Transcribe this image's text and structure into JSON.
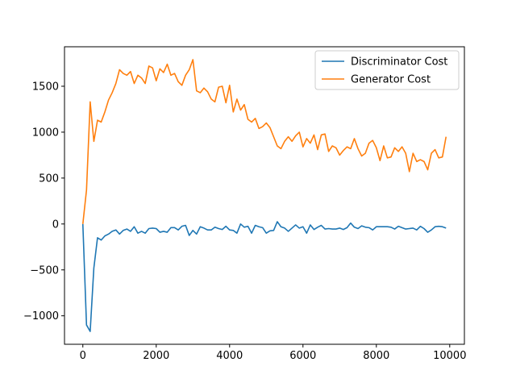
{
  "chart_data": {
    "type": "line",
    "title": "",
    "xlabel": "",
    "ylabel": "",
    "xlim": [
      -500,
      10400
    ],
    "ylim": [
      -1310,
      1930
    ],
    "xticks": [
      0,
      2000,
      4000,
      6000,
      8000,
      10000
    ],
    "xtick_labels": [
      "0",
      "2000",
      "4000",
      "6000",
      "8000",
      "10000"
    ],
    "yticks": [
      -1000,
      -500,
      0,
      500,
      1000,
      1500
    ],
    "ytick_labels": [
      "−1000",
      "−500",
      "0",
      "500",
      "1000",
      "1500"
    ],
    "grid": false,
    "legend": {
      "placement": "top-right"
    },
    "x": [
      0,
      100,
      200,
      300,
      400,
      500,
      600,
      700,
      800,
      900,
      1000,
      1100,
      1200,
      1300,
      1400,
      1500,
      1600,
      1700,
      1800,
      1900,
      2000,
      2100,
      2200,
      2300,
      2400,
      2500,
      2600,
      2700,
      2800,
      2900,
      3000,
      3100,
      3200,
      3300,
      3400,
      3500,
      3600,
      3700,
      3800,
      3900,
      4000,
      4100,
      4200,
      4300,
      4400,
      4500,
      4600,
      4700,
      4800,
      4900,
      5000,
      5100,
      5200,
      5300,
      5400,
      5500,
      5600,
      5700,
      5800,
      5900,
      6000,
      6100,
      6200,
      6300,
      6400,
      6500,
      6600,
      6700,
      6800,
      6900,
      7000,
      7100,
      7200,
      7300,
      7400,
      7500,
      7600,
      7700,
      7800,
      7900,
      8000,
      8100,
      8200,
      8300,
      8400,
      8500,
      8600,
      8700,
      8800,
      8900,
      9000,
      9100,
      9200,
      9300,
      9400,
      9500,
      9600,
      9700,
      9800,
      9900
    ],
    "series": [
      {
        "name": "Discriminator Cost",
        "color": "#1f77b4",
        "values": [
          0,
          -1100,
          -1170,
          -480,
          -150,
          -175,
          -130,
          -110,
          -80,
          -65,
          -110,
          -70,
          -55,
          -80,
          -30,
          -100,
          -80,
          -100,
          -50,
          -45,
          -50,
          -90,
          -80,
          -90,
          -40,
          -40,
          -65,
          -25,
          -15,
          -125,
          -70,
          -110,
          -30,
          -45,
          -65,
          -65,
          -35,
          -50,
          -60,
          -25,
          -65,
          -70,
          -100,
          0,
          -35,
          -25,
          -100,
          -15,
          -30,
          -40,
          -100,
          -75,
          -70,
          25,
          -30,
          -45,
          -80,
          -45,
          -10,
          -45,
          -30,
          -100,
          -10,
          -60,
          -35,
          -15,
          -55,
          -50,
          -55,
          -55,
          -45,
          -60,
          -40,
          10,
          -35,
          -50,
          -20,
          -35,
          -40,
          -65,
          -30,
          -30,
          -30,
          -30,
          -35,
          -55,
          -25,
          -40,
          -55,
          -50,
          -45,
          -65,
          -25,
          -50,
          -90,
          -65,
          -30,
          -25,
          -30,
          -45
        ]
      },
      {
        "name": "Generator Cost",
        "color": "#ff7f0e",
        "values": [
          0,
          370,
          1330,
          900,
          1130,
          1110,
          1220,
          1350,
          1430,
          1530,
          1680,
          1640,
          1620,
          1660,
          1530,
          1620,
          1590,
          1530,
          1720,
          1700,
          1560,
          1690,
          1650,
          1740,
          1620,
          1640,
          1550,
          1510,
          1620,
          1680,
          1790,
          1450,
          1430,
          1480,
          1440,
          1360,
          1330,
          1490,
          1500,
          1320,
          1510,
          1220,
          1360,
          1240,
          1300,
          1140,
          1110,
          1150,
          1040,
          1060,
          1100,
          1050,
          950,
          850,
          820,
          900,
          950,
          900,
          960,
          1000,
          840,
          930,
          880,
          970,
          810,
          970,
          980,
          790,
          850,
          830,
          750,
          800,
          840,
          820,
          930,
          820,
          740,
          770,
          880,
          910,
          830,
          690,
          850,
          720,
          730,
          830,
          790,
          840,
          770,
          570,
          770,
          680,
          700,
          680,
          590,
          770,
          810,
          720,
          730,
          950
        ]
      }
    ]
  }
}
